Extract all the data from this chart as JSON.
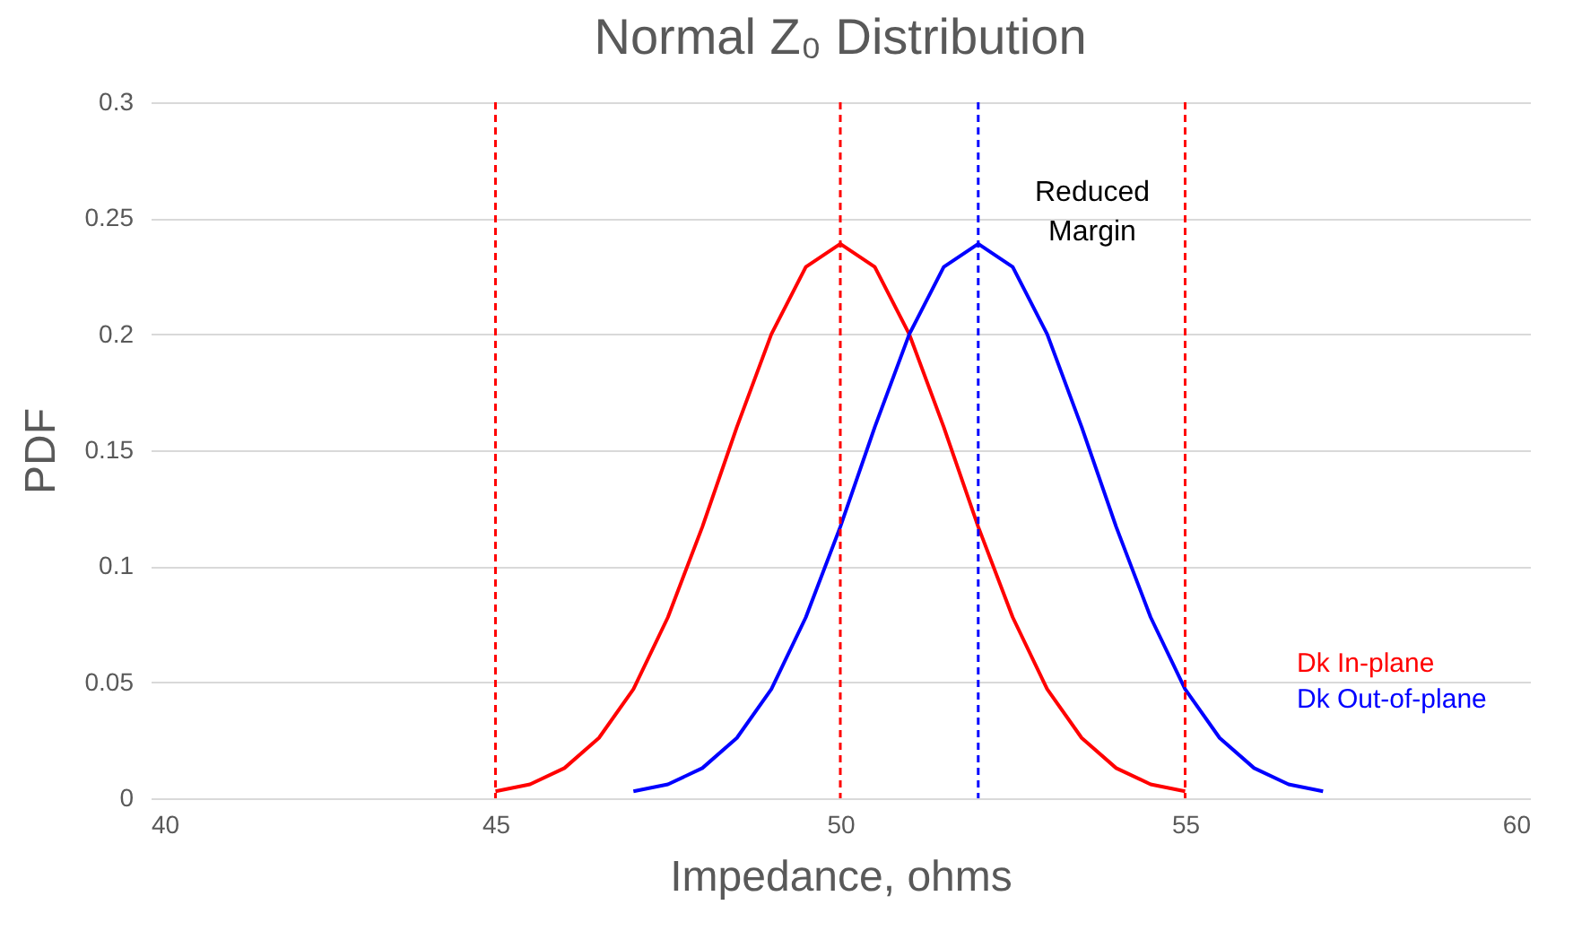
{
  "chart_data": {
    "type": "line",
    "title": "Normal Z₀ Distribution",
    "xlabel": "Impedance, ohms",
    "ylabel": "PDF",
    "xlim": [
      40,
      60
    ],
    "xticks": [
      40,
      45,
      50,
      55,
      60
    ],
    "ylim": [
      0,
      0.3
    ],
    "yticks": [
      0,
      0.05,
      0.1,
      0.15,
      0.2,
      0.25,
      0.3
    ],
    "grid": "y",
    "legend": "bottom right",
    "line_style": "solid",
    "marker": "none",
    "series": [
      {
        "name": "Dk In-plane",
        "color": "#ff0000",
        "x": [
          45,
          45.5,
          46,
          46.5,
          47,
          47.5,
          48,
          48.5,
          49,
          49.5,
          50,
          50.5,
          51,
          51.5,
          52,
          52.5,
          53,
          53.5,
          54,
          54.5,
          55
        ],
        "values": [
          0.003,
          0.006,
          0.013,
          0.026,
          0.047,
          0.078,
          0.117,
          0.16,
          0.2,
          0.229,
          0.239,
          0.229,
          0.2,
          0.16,
          0.117,
          0.078,
          0.047,
          0.026,
          0.013,
          0.006,
          0.003
        ]
      },
      {
        "name": "Dk Out-of-plane",
        "color": "#0000ff",
        "x": [
          47,
          47.5,
          48,
          48.5,
          49,
          49.5,
          50,
          50.5,
          51,
          51.5,
          52,
          52.5,
          53,
          53.5,
          54,
          54.5,
          55,
          55.5,
          56,
          56.5,
          57
        ],
        "values": [
          0.003,
          0.006,
          0.013,
          0.026,
          0.047,
          0.078,
          0.117,
          0.16,
          0.2,
          0.229,
          0.239,
          0.229,
          0.2,
          0.16,
          0.117,
          0.078,
          0.047,
          0.026,
          0.013,
          0.006,
          0.003
        ]
      }
    ],
    "ref_lines": [
      {
        "axis": "x",
        "value": 45,
        "color": "#ff0000",
        "line_style": "dashed"
      },
      {
        "axis": "x",
        "value": 50,
        "color": "#ff0000",
        "line_style": "dashed"
      },
      {
        "axis": "x",
        "value": 55,
        "color": "#ff0000",
        "line_style": "dashed"
      },
      {
        "axis": "x",
        "value": 52,
        "color": "#0000ff",
        "line_style": "dashed"
      }
    ],
    "annotations": [
      "Reduced Margin"
    ]
  }
}
